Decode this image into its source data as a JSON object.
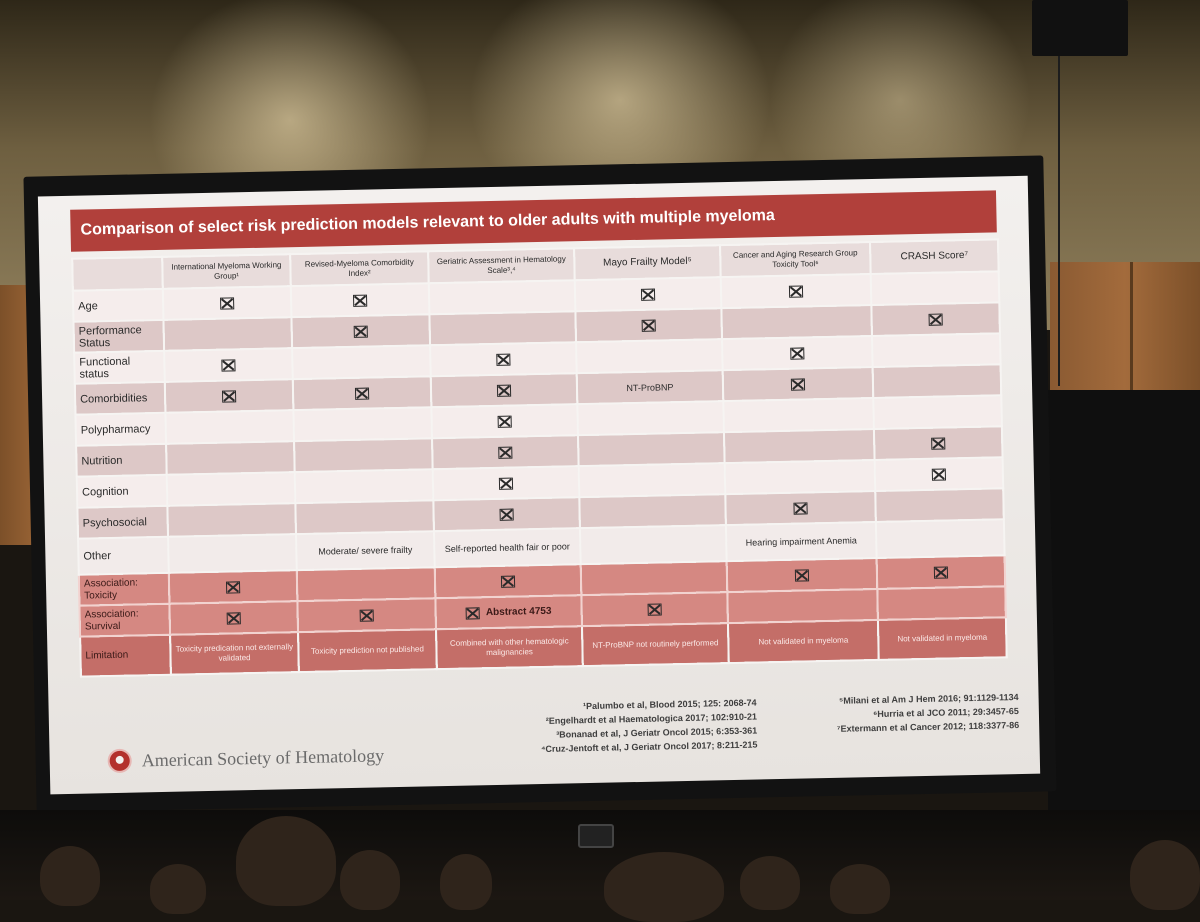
{
  "slide": {
    "title": "Comparison of select risk prediction models relevant to older adults with multiple myeloma",
    "columns": [
      "",
      "International Myeloma Working Group¹",
      "Revised-Myeloma Comorbidity Index²",
      "Geriatric Assessment in Hematology Scale³,⁴",
      "Mayo Frailty Model⁵",
      "Cancer and Aging Research Group Toxicity Tool⁶",
      "CRASH Score⁷"
    ],
    "rows": {
      "age": "Age",
      "performance_status": "Performance Status",
      "functional_status": "Functional status",
      "comorbidities": "Comorbidities",
      "polypharmacy": "Polypharmacy",
      "nutrition": "Nutrition",
      "cognition": "Cognition",
      "psychosocial": "Psychosocial",
      "other": "Other",
      "association_toxicity": "Association: Toxicity",
      "association_survival": "Association: Survival",
      "limitation": "Limitation"
    },
    "cells": {
      "comorbidities_mayo": "NT-ProBNP",
      "other_rmci": "Moderate/ severe frailty",
      "other_gah": "Self-reported health fair or poor",
      "other_carg": "Hearing impairment Anemia",
      "survival_gah_note": "Abstract 4753",
      "limit_imwg": "Toxicity predication not externally validated",
      "limit_rmci": "Toxicity prediction not published",
      "limit_gah": "Combined with other hematologic malignancies",
      "limit_mayo": "NT-ProBNP not routinely performed",
      "limit_carg": "Not validated in myeloma",
      "limit_crash": "Not validated in myeloma"
    },
    "checked_marks": {
      "age": [
        1,
        2,
        4,
        5
      ],
      "performance_status": [
        2,
        4,
        6
      ],
      "functional_status": [
        1,
        3,
        5
      ],
      "comorbidities": [
        1,
        2,
        3,
        5
      ],
      "polypharmacy": [
        3
      ],
      "nutrition": [
        3,
        6
      ],
      "cognition": [
        3,
        6
      ],
      "psychosocial": [
        3,
        5
      ],
      "association_toxicity": [
        1,
        3,
        5,
        6
      ],
      "association_survival": [
        1,
        2,
        3,
        4
      ]
    },
    "references_left": [
      "¹Palumbo et al, Blood 2015; 125: 2068-74",
      "²Engelhardt et al Haematologica 2017; 102:910-21",
      "³Bonanad et al, J Geriatr Oncol 2015; 6:353-361",
      "⁴Cruz-Jentoft et al, J Geriatr Oncol 2017; 8:211-215"
    ],
    "references_right": [
      "⁵Milani et al Am J Hem 2016; 91:1129-1134",
      "⁶Hurria et al JCO 2011; 29:3457-65",
      "⁷Extermann et al Cancer 2012; 118:3377-86"
    ],
    "society_name": "American Society of Hematology"
  },
  "colors": {
    "title_bar": "#b1403b",
    "association_rows": "#d58882",
    "limitation_row": "#c46e68"
  }
}
